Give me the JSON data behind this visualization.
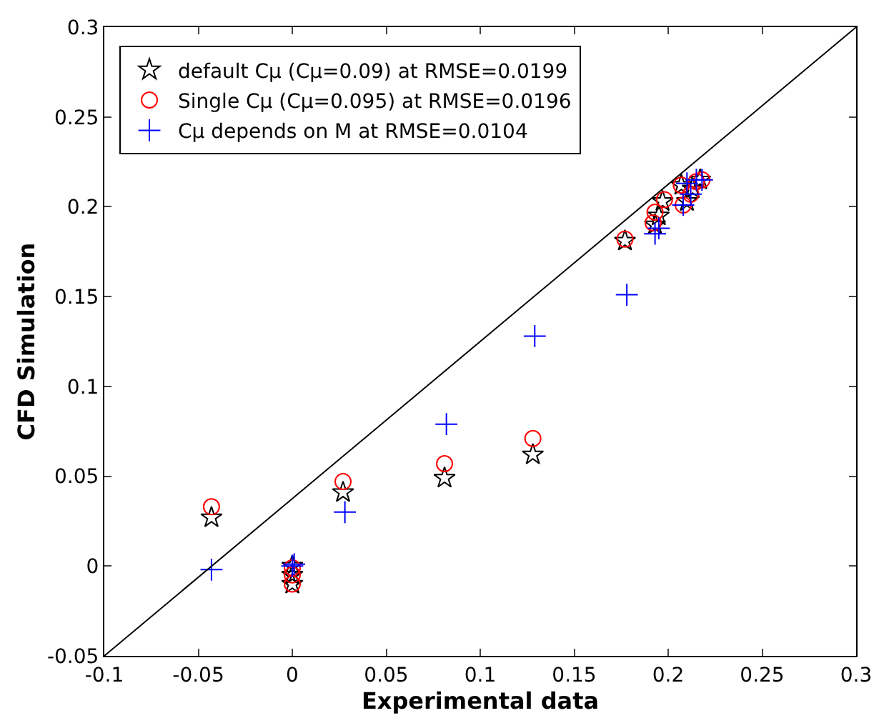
{
  "chart_data": {
    "type": "scatter",
    "xlabel": "Experimental data",
    "ylabel": "CFD Simulation",
    "xlim": [
      -0.1,
      0.3
    ],
    "ylim": [
      -0.05,
      0.3
    ],
    "xticks": [
      -0.1,
      -0.05,
      0,
      0.05,
      0.1,
      0.15,
      0.2,
      0.25,
      0.3
    ],
    "yticks": [
      -0.05,
      0,
      0.05,
      0.1,
      0.15,
      0.2,
      0.25,
      0.3
    ],
    "legend": "top left",
    "series": [
      {
        "name": "default Cμ (Cμ=0.09) at RMSE=0.0199",
        "color": "#000000",
        "marker": "star",
        "x": [
          -0.043,
          0,
          0,
          0,
          0.027,
          0.081,
          0.128,
          0.177,
          0.193,
          0.195,
          0.197,
          0.207,
          0.21,
          0.213,
          0.217
        ],
        "values": [
          0.027,
          0,
          -0.005,
          -0.01,
          0.041,
          0.049,
          0.062,
          0.181,
          0.19,
          0.195,
          0.203,
          0.212,
          0.203,
          0.21,
          0.215
        ]
      },
      {
        "name": "Single Cμ (Cμ=0.095) at RMSE=0.0196",
        "color": "#ff0000",
        "marker": "circle",
        "x": [
          -0.043,
          0,
          0,
          0,
          0.027,
          0.081,
          0.128,
          0.177,
          0.192,
          0.193,
          0.198,
          0.207,
          0.208,
          0.212,
          0.215,
          0.218
        ],
        "values": [
          0.033,
          -0.001,
          -0.005,
          -0.01,
          0.047,
          0.057,
          0.071,
          0.182,
          0.191,
          0.197,
          0.204,
          0.212,
          0.201,
          0.207,
          0.214,
          0.215
        ]
      },
      {
        "name": "Cμ depends on M at RMSE=0.0104",
        "color": "#0000ff",
        "marker": "cross",
        "x": [
          -0.043,
          0,
          0.001,
          0.028,
          0.082,
          0.129,
          0.178,
          0.193,
          0.195,
          0.208,
          0.21,
          0.212,
          0.215,
          0.218
        ],
        "values": [
          -0.002,
          0,
          0.001,
          0.03,
          0.079,
          0.128,
          0.151,
          0.185,
          0.188,
          0.201,
          0.213,
          0.207,
          0.215,
          0.215
        ]
      },
      {
        "type": "line",
        "color": "#000000",
        "marker": "none",
        "line_style": "solid",
        "x": [
          -0.1,
          0.3
        ],
        "values": [
          -0.05,
          0.3
        ]
      }
    ]
  }
}
